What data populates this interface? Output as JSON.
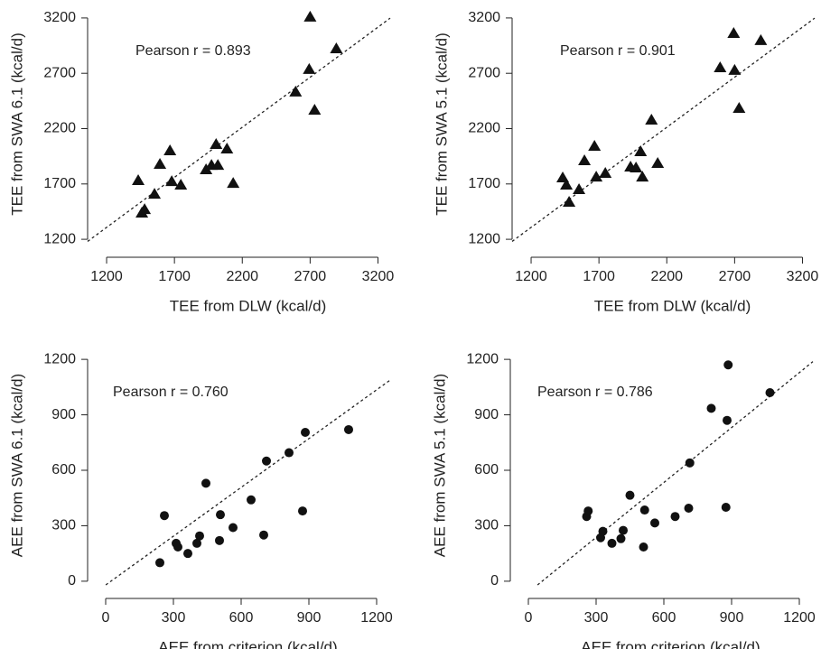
{
  "chart_data": [
    {
      "type": "scatter",
      "marker": "triangle",
      "color": "#111111",
      "annotation": "Pearson r = 0.893",
      "x_label": "TEE from DLW (kcal/d)",
      "y_label": "TEE from SWA 6.1 (kcal/d)",
      "xlim": [
        1060,
        3290
      ],
      "ylim": [
        1160,
        3240
      ],
      "xticks": [
        1200,
        1700,
        2200,
        2700,
        3200
      ],
      "yticks": [
        1200,
        1700,
        2200,
        2700,
        3200
      ],
      "x": [
        1433,
        1460,
        1480,
        1553,
        1593,
        1667,
        1680,
        1747,
        1933,
        1973,
        2007,
        2020,
        2087,
        2133,
        2593,
        2693,
        2700,
        2733,
        2893
      ],
      "values": [
        1731,
        1437,
        1469,
        1608,
        1878,
        2000,
        1722,
        1690,
        1829,
        1869,
        2057,
        1869,
        2016,
        1706,
        2531,
        2735,
        3208,
        2367,
        2922
      ]
    },
    {
      "type": "scatter",
      "marker": "triangle",
      "color": "#111111",
      "annotation": "Pearson r = 0.901",
      "x_label": "TEE from DLW (kcal/d)",
      "y_label": "TEE from SWA 5.1 (kcal/d)",
      "xlim": [
        1060,
        3290
      ],
      "ylim": [
        1160,
        3240
      ],
      "xticks": [
        1200,
        1700,
        2200,
        2700,
        3200
      ],
      "yticks": [
        1200,
        1700,
        2200,
        2700,
        3200
      ],
      "x": [
        1433,
        1460,
        1480,
        1553,
        1593,
        1667,
        1680,
        1747,
        1933,
        1973,
        2007,
        2020,
        2087,
        2133,
        2593,
        2693,
        2700,
        2733,
        2893
      ],
      "values": [
        1755,
        1690,
        1535,
        1649,
        1910,
        2041,
        1763,
        1796,
        1853,
        1845,
        1992,
        1763,
        2278,
        1886,
        2751,
        3061,
        2727,
        2384,
        2996
      ]
    },
    {
      "type": "scatter",
      "marker": "circle",
      "color": "#111111",
      "annotation": "Pearson r = 0.760",
      "x_label": "AEE from criterion (kcal/d)",
      "y_label": "AEE from SWA 6.1 (kcal/d)",
      "xlim": [
        -80,
        1260
      ],
      "ylim": [
        -20,
        1225
      ],
      "xticks": [
        0,
        300,
        600,
        900,
        1200
      ],
      "yticks": [
        0,
        300,
        600,
        900,
        1200
      ],
      "x": [
        240,
        260,
        312,
        320,
        364,
        404,
        416,
        444,
        508,
        504,
        564,
        644,
        700,
        712,
        812,
        872,
        884,
        1076
      ],
      "values": [
        100,
        355,
        205,
        185,
        150,
        205,
        245,
        530,
        360,
        220,
        290,
        440,
        250,
        650,
        695,
        380,
        805,
        820
      ]
    },
    {
      "type": "scatter",
      "marker": "circle",
      "color": "#111111",
      "annotation": "Pearson r = 0.786",
      "x_label": "AEE from criterion (kcal/d)",
      "y_label": "AEE from SWA 5.1 (kcal/d)",
      "xlim": [
        -80,
        1260
      ],
      "ylim": [
        -20,
        1225
      ],
      "xticks": [
        0,
        300,
        600,
        900,
        1200
      ],
      "yticks": [
        0,
        300,
        600,
        900,
        1200
      ],
      "x": [
        258,
        265,
        320,
        330,
        370,
        410,
        420,
        450,
        510,
        515,
        560,
        650,
        710,
        715,
        810,
        875,
        880,
        885,
        1070
      ],
      "values": [
        350,
        380,
        235,
        270,
        205,
        230,
        275,
        465,
        185,
        385,
        315,
        350,
        395,
        640,
        935,
        400,
        870,
        1170,
        1020
      ]
    }
  ]
}
